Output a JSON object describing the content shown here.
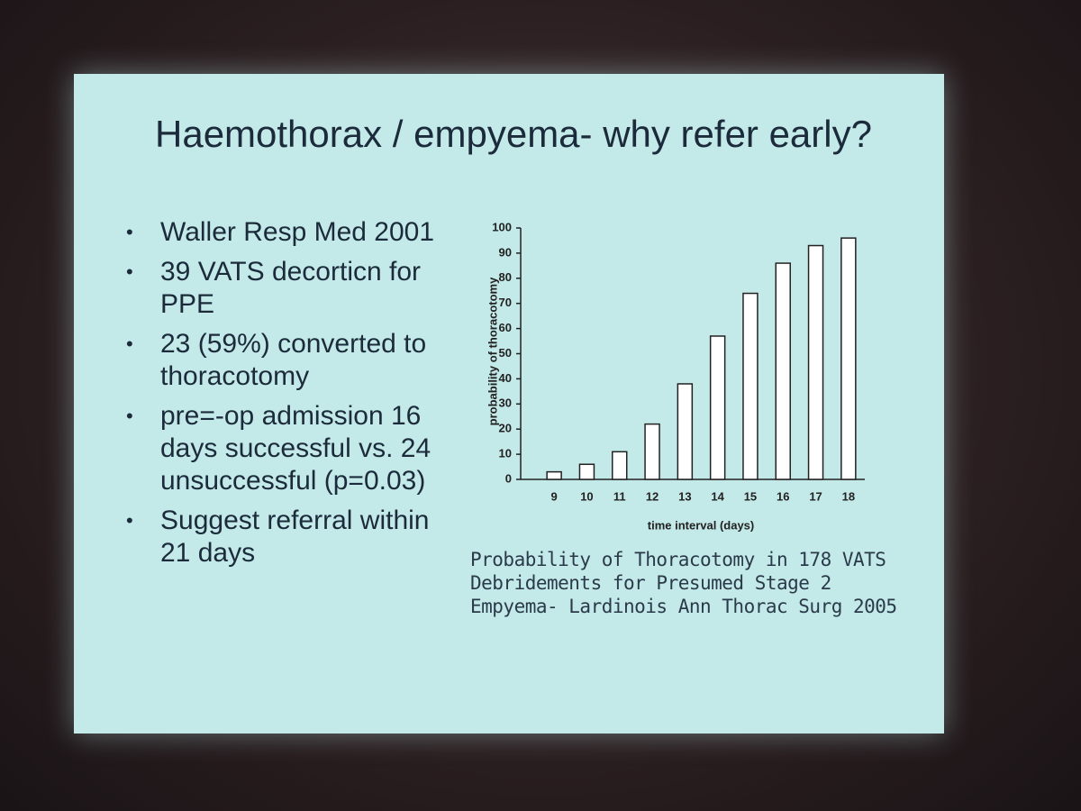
{
  "slide": {
    "title": "Haemothorax / empyema- why refer early?",
    "bullets": [
      "Waller Resp Med 2001",
      "39 VATS decorticn for PPE",
      "23 (59%) converted to thoracotomy",
      "pre=-op admission 16 days successful vs. 24 unsuccessful (p=0.03)",
      "Suggest referral within 21 days"
    ],
    "caption": "Probability of Thoracotomy  in 178 VATS Debridements for Presumed Stage 2 Empyema- Lardinois Ann Thorac Surg 2005"
  },
  "chart_data": {
    "type": "bar",
    "x_label": "time interval (days)",
    "y_label": "probability of thoracotomy",
    "categories": [
      "9",
      "10",
      "11",
      "12",
      "13",
      "14",
      "15",
      "16",
      "17",
      "18"
    ],
    "values": [
      3,
      6,
      11,
      22,
      38,
      57,
      74,
      86,
      93,
      96
    ],
    "color": "#ffffff",
    "ylim": [
      0,
      100
    ],
    "yticks": [
      0,
      10,
      20,
      30,
      40,
      50,
      60,
      70,
      80,
      90,
      100
    ],
    "grid": false
  }
}
